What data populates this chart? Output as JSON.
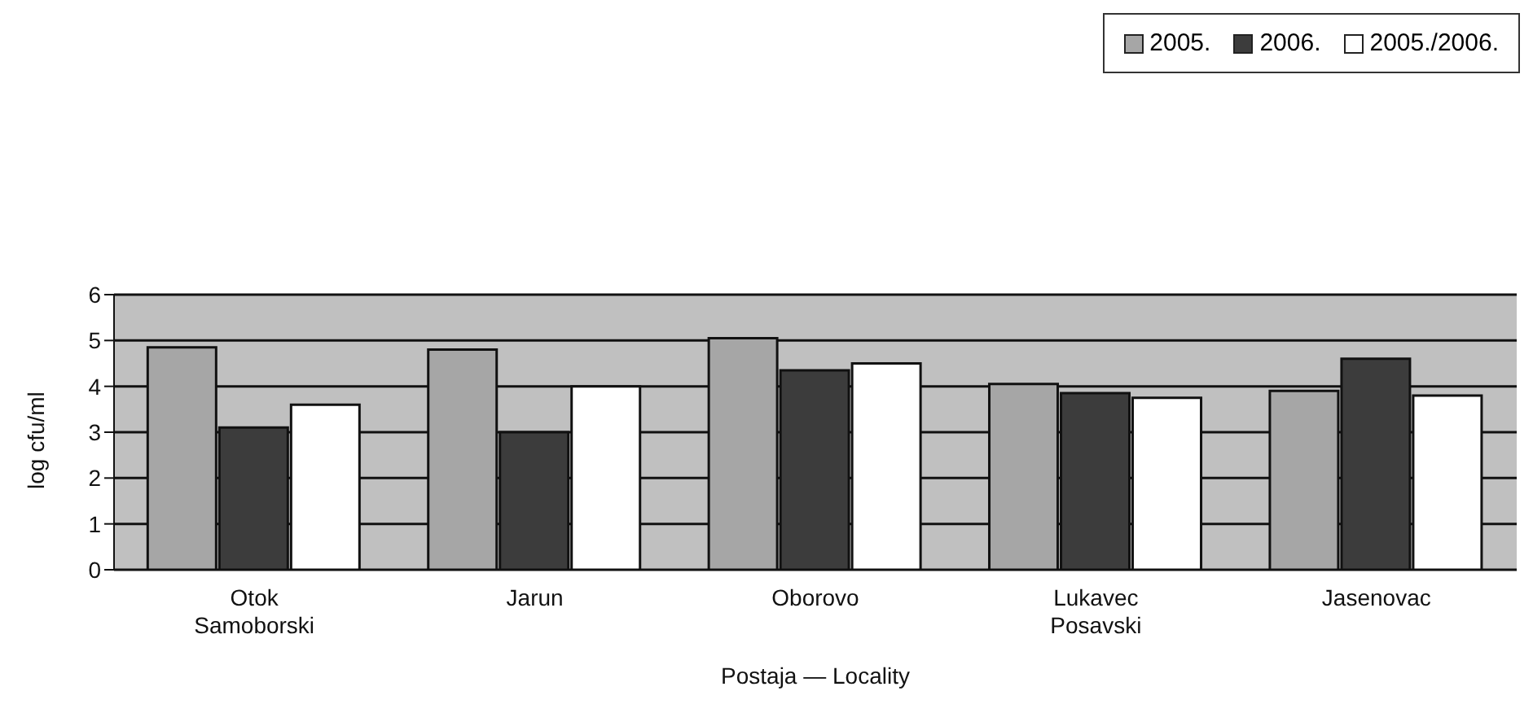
{
  "chart_data": {
    "type": "bar",
    "xlabel": "Postaja — Locality",
    "ylabel": "log cfu/ml",
    "categories": [
      "Otok Samoborski",
      "Jarun",
      "Oborovo",
      "Lukavec Posavski",
      "Jasenovac"
    ],
    "series": [
      {
        "name": "2005.",
        "color": "#a6a6a6",
        "values": [
          4.85,
          4.8,
          5.05,
          4.05,
          3.9
        ]
      },
      {
        "name": "2006.",
        "color": "#3c3c3c",
        "values": [
          3.1,
          3.0,
          4.35,
          3.85,
          4.6
        ]
      },
      {
        "name": "2005./2006.",
        "color": "#ffffff",
        "values": [
          3.6,
          4.0,
          4.5,
          3.75,
          3.8
        ]
      }
    ],
    "ylim": [
      0,
      6
    ],
    "yticks": [
      0,
      1,
      2,
      3,
      4,
      5,
      6
    ],
    "grid": "y",
    "legend": "top right"
  }
}
